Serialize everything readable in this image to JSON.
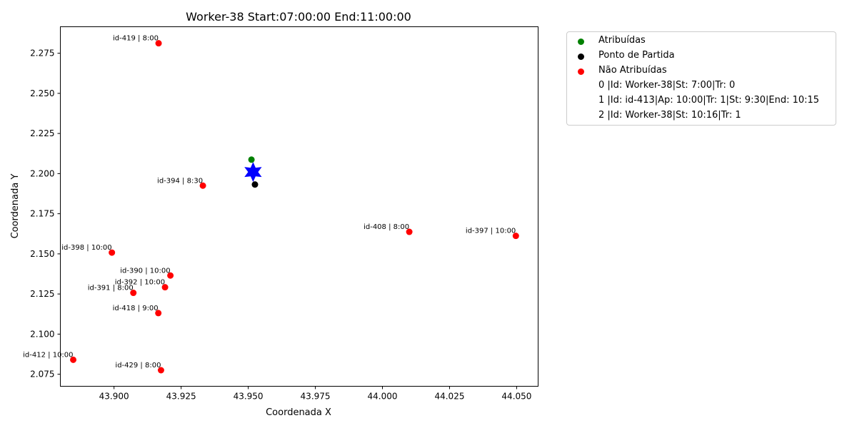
{
  "chart_data": {
    "type": "scatter",
    "title": "Worker-38 Start:07:00:00 End:11:00:00",
    "xlabel": "Coordenada X",
    "ylabel": "Coordenada Y",
    "xlim": [
      43.88,
      44.058
    ],
    "ylim": [
      2.0675,
      2.2915
    ],
    "xticks": [
      "43.900",
      "43.925",
      "43.950",
      "43.975",
      "44.000",
      "44.025",
      "44.050"
    ],
    "yticks": [
      "2.075",
      "2.100",
      "2.125",
      "2.150",
      "2.175",
      "2.200",
      "2.225",
      "2.250",
      "2.275"
    ],
    "grid": false,
    "legend_position": "outside-right",
    "colors": {
      "assigned": "#008000",
      "start": "#000000",
      "unassigned": "#ff0000",
      "depot": "#0000ff"
    },
    "series": [
      {
        "name": "Atribuídas",
        "points": [
          {
            "x": 43.9512,
            "y": 2.2087
          }
        ]
      },
      {
        "name": "Ponto de Partida",
        "points": [
          {
            "x": 43.9525,
            "y": 2.1932
          }
        ]
      },
      {
        "name": "Não Atribuídas",
        "points": [
          {
            "x": 43.9166,
            "y": 2.2812,
            "label": "id-419 | 8:00"
          },
          {
            "x": 43.9331,
            "y": 2.1925,
            "label": "id-394 | 8:30"
          },
          {
            "x": 44.01,
            "y": 2.1637,
            "label": "id-408 | 8:00"
          },
          {
            "x": 44.0497,
            "y": 2.1612,
            "label": "id-397 | 10:00"
          },
          {
            "x": 43.8992,
            "y": 2.1508,
            "label": "id-398 | 10:00"
          },
          {
            "x": 43.921,
            "y": 2.1365,
            "label": "id-390 | 10:00"
          },
          {
            "x": 43.919,
            "y": 2.1292,
            "label": "id-392 | 10:00"
          },
          {
            "x": 43.9072,
            "y": 2.1257,
            "label": "id-391 | 8:00"
          },
          {
            "x": 43.9165,
            "y": 2.1131,
            "label": "id-418 | 9:00"
          },
          {
            "x": 43.8848,
            "y": 2.084,
            "label": "id-412 | 10:00"
          },
          {
            "x": 43.9175,
            "y": 2.0775,
            "label": "id-429 | 8:00"
          }
        ]
      }
    ],
    "depot_marker": {
      "x": 43.9518,
      "y": 2.201,
      "shape": "star"
    },
    "legend": [
      {
        "label": "Atribuídas",
        "color": "#008000"
      },
      {
        "label": "Ponto de Partida",
        "color": "#000000"
      },
      {
        "label": "Não Atribuídas",
        "color": "#ff0000"
      },
      {
        "label": "0 |Id: Worker-38|St: 7:00|Tr: 0",
        "color": ""
      },
      {
        "label": "1 |Id: id-413|Ap: 10:00|Tr: 1|St: 9:30|End: 10:15",
        "color": ""
      },
      {
        "label": "2 |Id: Worker-38|St: 10:16|Tr: 1",
        "color": ""
      }
    ]
  }
}
